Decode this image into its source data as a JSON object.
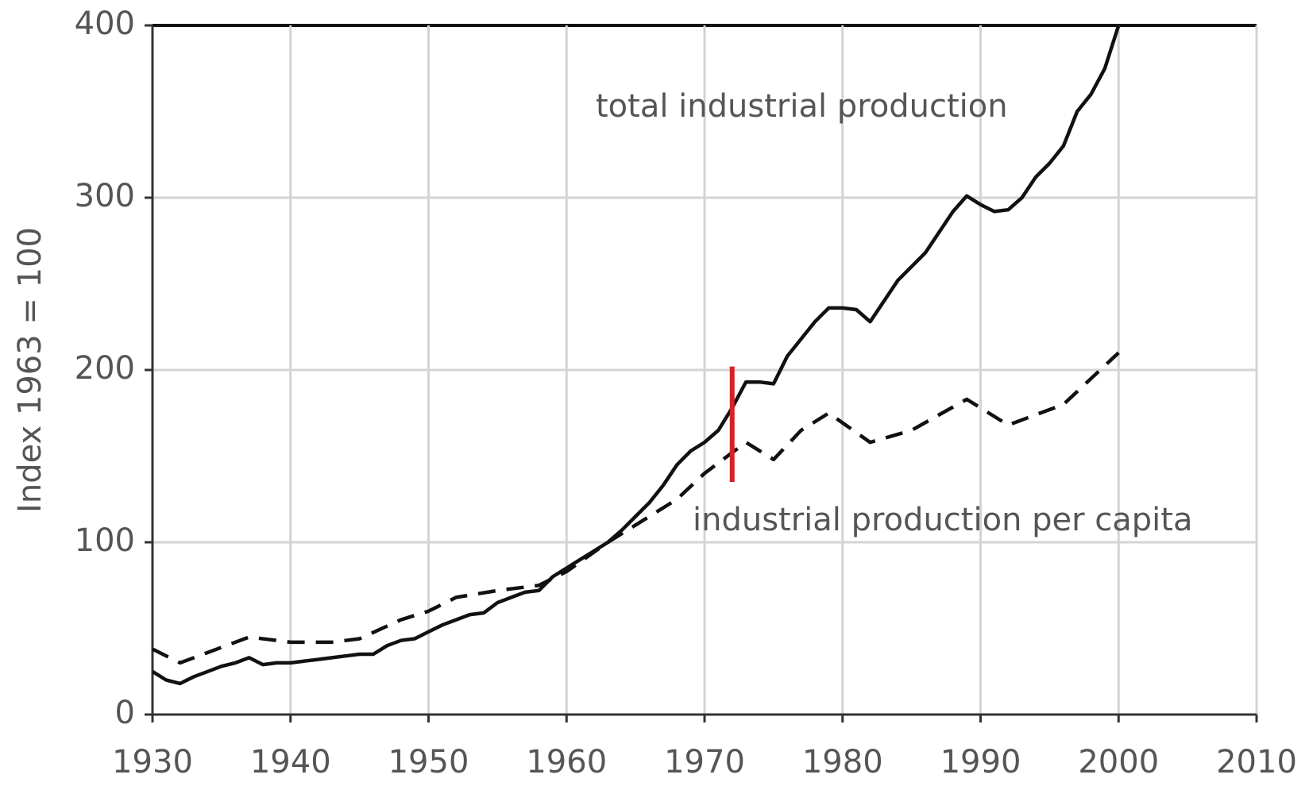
{
  "chart_data": {
    "type": "line",
    "ylabel": "Index 1963 = 100",
    "xlim": [
      1930,
      2010
    ],
    "xticks": [
      1930,
      1940,
      1950,
      1960,
      1970,
      1980,
      1990,
      2000,
      2010
    ],
    "ylim": [
      0,
      400
    ],
    "yticks": [
      0,
      100,
      200,
      300,
      400
    ],
    "grid": true,
    "series": [
      {
        "name": "total industrial production",
        "color": "#111111",
        "dash": false,
        "x": [
          1930,
          1931,
          1932,
          1933,
          1934,
          1935,
          1936,
          1937,
          1938,
          1939,
          1940,
          1941,
          1942,
          1943,
          1944,
          1945,
          1946,
          1947,
          1948,
          1949,
          1950,
          1951,
          1952,
          1953,
          1954,
          1955,
          1956,
          1957,
          1958,
          1959,
          1960,
          1961,
          1962,
          1963,
          1964,
          1965,
          1966,
          1967,
          1968,
          1969,
          1970,
          1971,
          1972,
          1973,
          1974,
          1975,
          1976,
          1977,
          1978,
          1979,
          1980,
          1981,
          1982,
          1983,
          1984,
          1985,
          1986,
          1987,
          1988,
          1989,
          1990,
          1991,
          1992,
          1993,
          1994,
          1995,
          1996,
          1997,
          1998,
          1999,
          2000
        ],
        "values": [
          25,
          20,
          18,
          22,
          25,
          28,
          30,
          33,
          29,
          30,
          30,
          31,
          32,
          33,
          34,
          35,
          35,
          40,
          43,
          44,
          48,
          52,
          55,
          58,
          59,
          65,
          68,
          71,
          72,
          80,
          85,
          90,
          95,
          100,
          107,
          115,
          123,
          133,
          145,
          153,
          158,
          165,
          178,
          193,
          193,
          192,
          208,
          218,
          228,
          236,
          236,
          235,
          228,
          240,
          252,
          260,
          268,
          280,
          292,
          301,
          296,
          292,
          293,
          300,
          312,
          320,
          330,
          350,
          360,
          375,
          400
        ]
      },
      {
        "name": "industrial production per capita",
        "color": "#111111",
        "dash": true,
        "x": [
          1930,
          1932,
          1934,
          1937,
          1940,
          1943,
          1945,
          1948,
          1950,
          1952,
          1955,
          1958,
          1960,
          1963,
          1966,
          1968,
          1970,
          1973,
          1975,
          1977,
          1979,
          1982,
          1985,
          1989,
          1992,
          1996,
          2000
        ],
        "values": [
          38,
          30,
          36,
          45,
          42,
          42,
          44,
          55,
          60,
          68,
          72,
          75,
          83,
          100,
          115,
          125,
          140,
          158,
          148,
          165,
          175,
          158,
          165,
          183,
          168,
          180,
          210
        ]
      }
    ],
    "marker": {
      "x": 1972,
      "y": [
        135,
        202
      ],
      "color": "#d8202a"
    }
  }
}
